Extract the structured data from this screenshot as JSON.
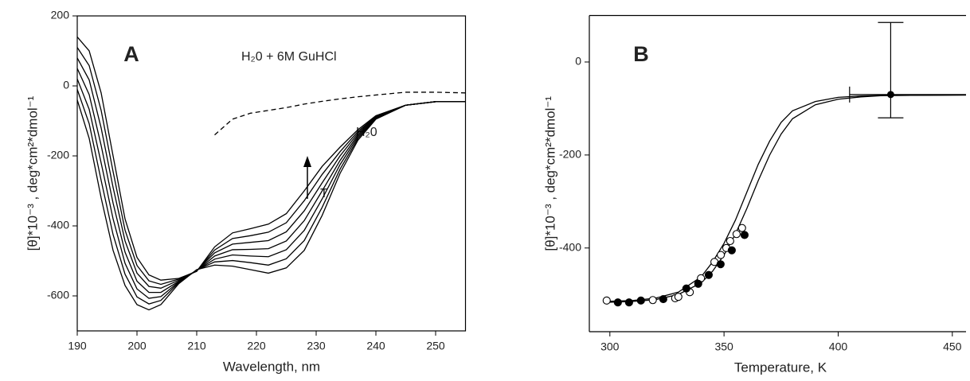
{
  "chart_data": [
    {
      "type": "line",
      "panel_label": "A",
      "xlabel": "Wavelength, nm",
      "ylabel": "[θ]*10⁻³ , deg*cm²*dmol⁻¹",
      "x": [
        190,
        192,
        194,
        196,
        198,
        200,
        202,
        204,
        207,
        210,
        213,
        216,
        219,
        222,
        225,
        228,
        231,
        234,
        237,
        240,
        245,
        250,
        255
      ],
      "xlim": [
        190,
        255
      ],
      "xticks": [
        190,
        200,
        210,
        220,
        230,
        240,
        250
      ],
      "ylim": [
        -700,
        200
      ],
      "yticks": [
        -600,
        -400,
        -200,
        0,
        200
      ],
      "series": [
        {
          "color": "#000000",
          "values": [
            -40,
            -150,
            -320,
            -470,
            -570,
            -625,
            -640,
            -625,
            -565,
            -525,
            -512,
            -515,
            -525,
            -535,
            -520,
            -470,
            -370,
            -250,
            -155,
            -95,
            -55,
            -45,
            -45
          ]
        },
        {
          "color": "#000000",
          "values": [
            -10,
            -108,
            -270,
            -425,
            -538,
            -603,
            -623,
            -613,
            -562,
            -526,
            -503,
            -499,
            -505,
            -512,
            -494,
            -442,
            -347,
            -238,
            -150,
            -93,
            -55,
            -45,
            -45
          ]
        },
        {
          "color": "#000000",
          "values": [
            20,
            -67,
            -220,
            -380,
            -507,
            -580,
            -607,
            -602,
            -560,
            -527,
            -495,
            -483,
            -486,
            -488,
            -468,
            -413,
            -323,
            -225,
            -145,
            -92,
            -55,
            -45,
            -45
          ]
        },
        {
          "color": "#000000",
          "values": [
            50,
            -25,
            -170,
            -335,
            -475,
            -558,
            -590,
            -590,
            -558,
            -528,
            -486,
            -468,
            -467,
            -465,
            -443,
            -385,
            -300,
            -213,
            -140,
            -90,
            -55,
            -45,
            -45
          ]
        },
        {
          "color": "#000000",
          "values": [
            80,
            17,
            -120,
            -290,
            -443,
            -535,
            -573,
            -578,
            -555,
            -528,
            -477,
            -452,
            -447,
            -442,
            -417,
            -357,
            -277,
            -200,
            -135,
            -88,
            -55,
            -45,
            -45
          ]
        },
        {
          "color": "#000000",
          "values": [
            110,
            58,
            -70,
            -245,
            -412,
            -513,
            -557,
            -567,
            -552,
            -529,
            -469,
            -436,
            -428,
            -418,
            -391,
            -328,
            -253,
            -188,
            -130,
            -87,
            -55,
            -45,
            -45
          ]
        },
        {
          "color": "#000000",
          "values": [
            140,
            100,
            -20,
            -200,
            -380,
            -490,
            -540,
            -555,
            -550,
            -530,
            -460,
            -420,
            -408,
            -395,
            -365,
            -300,
            -230,
            -175,
            -125,
            -85,
            -55,
            -45,
            -45
          ]
        },
        {
          "name": "H₂0 + 6M GuHCl",
          "color": "#000000",
          "dashed": true,
          "values": [
            null,
            null,
            null,
            null,
            null,
            null,
            null,
            null,
            null,
            null,
            -140,
            -95,
            -78,
            -70,
            -62,
            -52,
            -44,
            -37,
            -31,
            -26,
            -18,
            -18,
            -20
          ]
        }
      ],
      "annotations": [
        "H₂0",
        "T"
      ]
    },
    {
      "type": "scatter",
      "panel_label": "B",
      "xlabel": "Temperature, K",
      "ylabel": "[θ]*10⁻³ , deg*cm²*dmol⁻¹",
      "xlim": [
        291,
        456
      ],
      "xticks": [
        300,
        350,
        400,
        450
      ],
      "ylim": [
        -580,
        100
      ],
      "yticks": [
        -400,
        -200,
        0
      ],
      "series": [
        {
          "marker": "none",
          "color": "#000000",
          "x": [
            298,
            310,
            320,
            330,
            340,
            345,
            350,
            355,
            360,
            365,
            370,
            375,
            380,
            390,
            400,
            410,
            420,
            456
          ],
          "values": [
            -515,
            -513,
            -508,
            -495,
            -462,
            -430,
            -390,
            -340,
            -280,
            -220,
            -170,
            -130,
            -105,
            -85,
            -76,
            -73,
            -72,
            -71
          ]
        },
        {
          "marker": "none",
          "color": "#000000",
          "x": [
            298,
            310,
            320,
            330,
            340,
            345,
            350,
            355,
            360,
            365,
            370,
            375,
            380,
            390,
            400,
            410,
            420,
            456
          ],
          "values": [
            -517,
            -515,
            -511,
            -500,
            -475,
            -450,
            -415,
            -370,
            -315,
            -255,
            -200,
            -155,
            -122,
            -92,
            -80,
            -75,
            -72,
            -71
          ]
        },
        {
          "marker": "open",
          "color": "#000000",
          "x": [
            298.6,
            318.8,
            328.6,
            330,
            335,
            339.9,
            345.8,
            348.6,
            351,
            352.7,
            355.5,
            357.9
          ],
          "values": [
            -513,
            -512,
            -508,
            -505,
            -495,
            -465,
            -430,
            -415,
            -400,
            -385,
            -370,
            -357
          ]
        },
        {
          "marker": "filled",
          "color": "#000000",
          "x": [
            303.5,
            308.4,
            313.6,
            323.4,
            333.5,
            338.7,
            343.3,
            348.5,
            353.4,
            359
          ],
          "values": [
            -517,
            -517,
            -513,
            -510,
            -487,
            -477,
            -458,
            -435,
            -405,
            -372
          ]
        }
      ],
      "errorbar": {
        "x": 423,
        "y": -70,
        "y_range": [
          -120,
          85
        ],
        "x_range": [
          405,
          456
        ]
      }
    }
  ]
}
